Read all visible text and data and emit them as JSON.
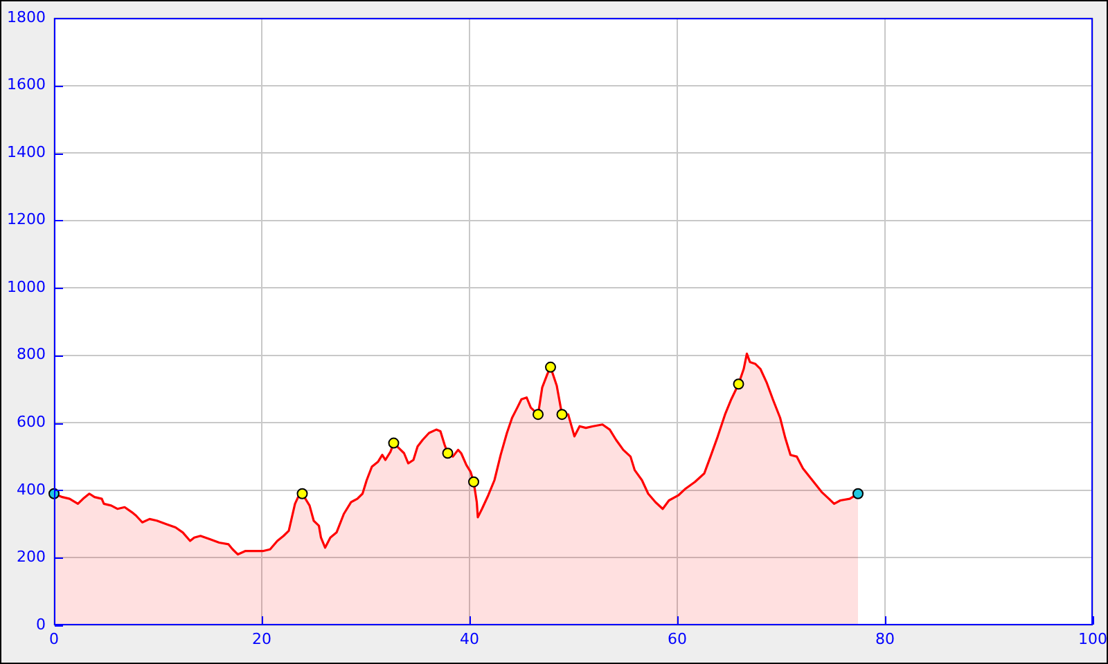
{
  "chart_data": {
    "type": "area",
    "xlim": [
      0,
      100
    ],
    "xticks": [
      0,
      20,
      40,
      60,
      80,
      100
    ],
    "ylim": [
      0,
      1800
    ],
    "yticks": [
      0,
      200,
      400,
      600,
      800,
      1000,
      1200,
      1400,
      1600,
      1800
    ],
    "grid": true,
    "series": [
      {
        "color": "#ff0000",
        "x": [
          0,
          0.8,
          1.5,
          2.3,
          2.8,
          3.4,
          3.9,
          4.6,
          4.8,
          5.5,
          6.1,
          6.8,
          7.5,
          7.9,
          8.5,
          9.2,
          9.9,
          10.8,
          11.7,
          12.4,
          13.1,
          13.5,
          14.1,
          15.0,
          15.9,
          16.8,
          17.2,
          17.7,
          18.4,
          19.2,
          20.1,
          20.8,
          21.5,
          22.1,
          22.6,
          23.2,
          23.5,
          23.9,
          24.6,
          25.0,
          25.5,
          25.7,
          26.1,
          26.6,
          27.2,
          27.9,
          28.6,
          29.2,
          29.7,
          30.1,
          30.6,
          31.2,
          31.6,
          31.9,
          32.4,
          32.7,
          33.2,
          33.7,
          34.1,
          34.6,
          35.0,
          35.5,
          36.1,
          36.8,
          37.2,
          37.6,
          37.9,
          38.4,
          38.9,
          39.2,
          39.7,
          40.1,
          40.4,
          40.7,
          40.8,
          41.2,
          41.8,
          42.4,
          43.0,
          43.6,
          44.1,
          44.6,
          45.0,
          45.5,
          45.9,
          46.6,
          47.0,
          47.5,
          47.8,
          48.4,
          48.9,
          49.5,
          50.1,
          50.6,
          51.2,
          51.9,
          52.8,
          53.5,
          54.1,
          54.8,
          55.5,
          55.9,
          56.6,
          57.2,
          57.9,
          58.6,
          59.2,
          60.1,
          60.8,
          61.7,
          62.6,
          63.2,
          63.9,
          64.6,
          65.2,
          65.9,
          66.4,
          66.7,
          67.0,
          67.5,
          68.0,
          68.6,
          69.2,
          69.9,
          70.4,
          70.9,
          71.5,
          72.1,
          73.0,
          73.9,
          74.6,
          75.1,
          75.7,
          76.6,
          77.4
        ],
        "values": [
          390,
          380,
          375,
          360,
          375,
          390,
          380,
          375,
          360,
          355,
          345,
          350,
          335,
          325,
          305,
          315,
          310,
          300,
          290,
          275,
          250,
          260,
          265,
          255,
          245,
          240,
          225,
          210,
          220,
          220,
          220,
          225,
          250,
          265,
          280,
          360,
          380,
          390,
          355,
          310,
          295,
          260,
          230,
          260,
          275,
          330,
          365,
          375,
          390,
          430,
          470,
          485,
          505,
          490,
          515,
          540,
          525,
          510,
          480,
          490,
          530,
          550,
          570,
          580,
          575,
          535,
          510,
          500,
          520,
          510,
          475,
          455,
          425,
          365,
          320,
          345,
          385,
          430,
          505,
          570,
          615,
          645,
          670,
          675,
          645,
          625,
          705,
          745,
          765,
          710,
          625,
          625,
          560,
          590,
          585,
          590,
          595,
          580,
          550,
          520,
          500,
          460,
          430,
          390,
          365,
          345,
          370,
          385,
          405,
          425,
          450,
          500,
          560,
          625,
          670,
          715,
          760,
          805,
          780,
          775,
          760,
          720,
          670,
          615,
          555,
          505,
          500,
          465,
          430,
          395,
          375,
          360,
          370,
          375,
          390
        ]
      },
      {
        "type": "scatter",
        "marker": "circle",
        "color": "#20c8e0",
        "x": [
          0,
          77.4
        ],
        "values": [
          390,
          390
        ]
      },
      {
        "type": "scatter",
        "marker": "circle",
        "color": "#ffff00",
        "x": [
          23.9,
          32.7,
          37.9,
          40.4,
          46.6,
          47.8,
          48.9,
          65.9
        ],
        "values": [
          390,
          540,
          510,
          425,
          625,
          765,
          625,
          715
        ]
      }
    ]
  }
}
